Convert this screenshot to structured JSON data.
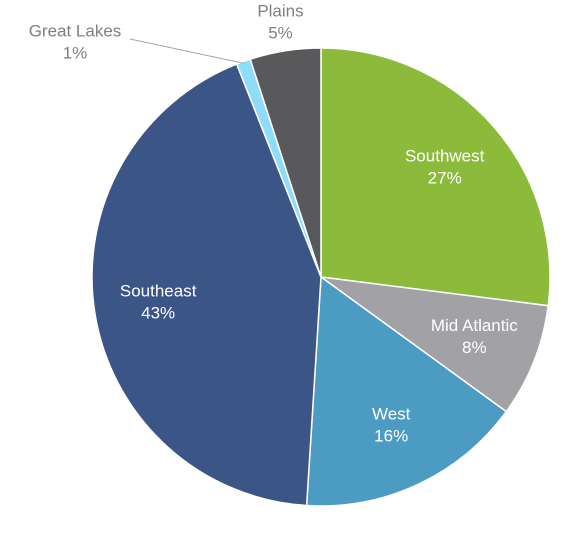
{
  "chart_data": {
    "type": "pie",
    "categories": [
      "Southwest",
      "Mid Atlantic",
      "West",
      "Southeast",
      "Great Lakes",
      "Plains"
    ],
    "values": [
      27,
      8,
      16,
      43,
      1,
      5
    ],
    "value_labels": [
      "27%",
      "8%",
      "16%",
      "43%",
      "1%",
      "5%"
    ],
    "colors": [
      "#8cbb3c",
      "#a2a2a6",
      "#4b9bc2",
      "#3b5586",
      "#8fdcf8",
      "#59595b"
    ]
  }
}
